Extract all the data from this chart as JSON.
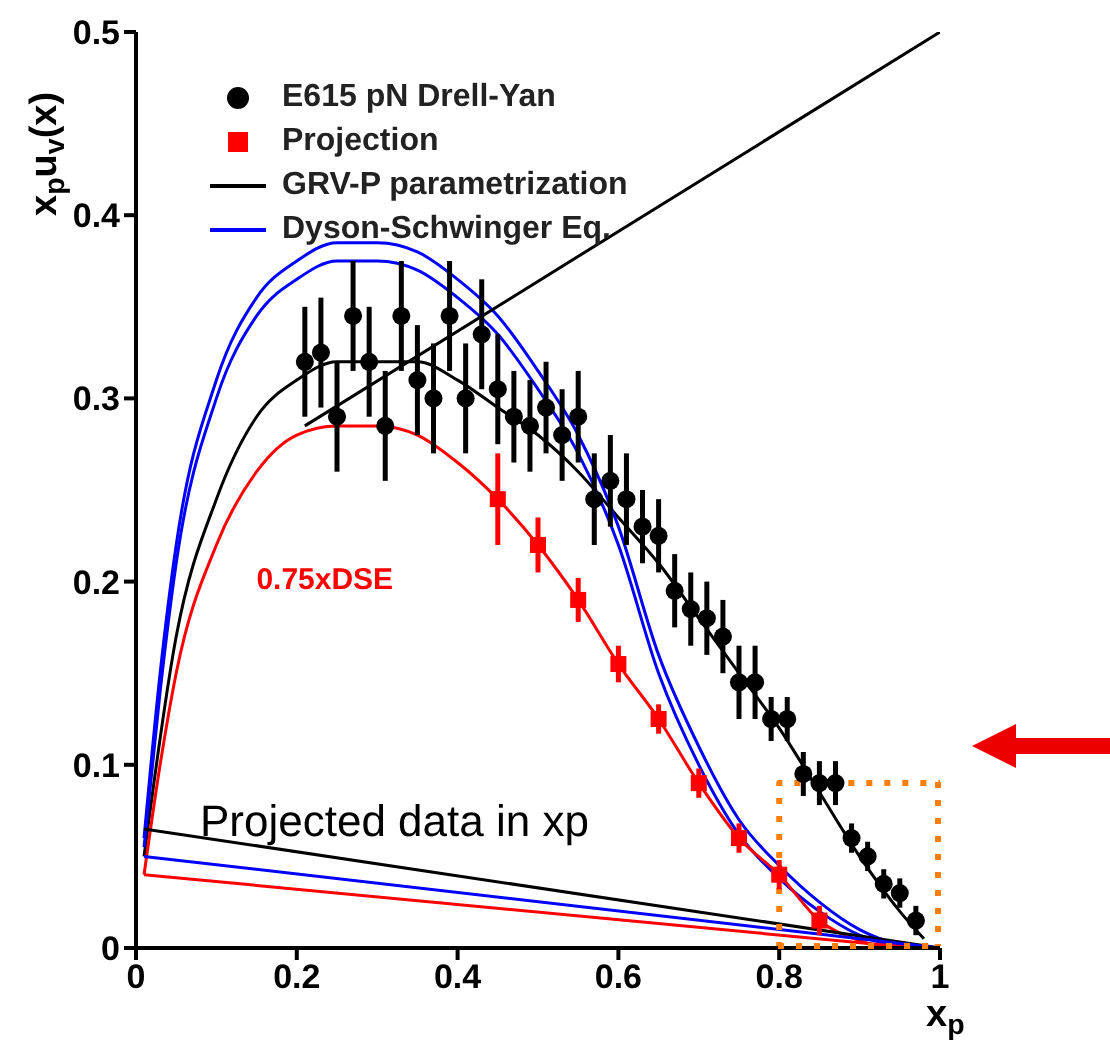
{
  "chart_data": {
    "type": "line",
    "xlabel": "x$_{p}$",
    "ylabel": "x$_{p}$u$_{v}$(x)",
    "xlim": [
      0,
      1
    ],
    "xticks": [
      0,
      0.2,
      0.4,
      0.6,
      0.8,
      1
    ],
    "ylim": [
      0,
      0.5
    ],
    "yticks": [
      0,
      0.1,
      0.2,
      0.3,
      0.4,
      0.5
    ],
    "grid": false,
    "legend": "top left",
    "annotations": [
      "Projected data in xp"
    ],
    "series": [
      {
        "name": "E615 pN Drell-Yan",
        "type": "scatter",
        "marker": "circle",
        "color": "#000000",
        "x": [
          0.21,
          0.23,
          0.25,
          0.27,
          0.29,
          0.31,
          0.33,
          0.35,
          0.37,
          0.39,
          0.41,
          0.43,
          0.45,
          0.47,
          0.49,
          0.51,
          0.53,
          0.55,
          0.57,
          0.59,
          0.61,
          0.63,
          0.65,
          0.67,
          0.69,
          0.71,
          0.73,
          0.75,
          0.77,
          0.79,
          0.81,
          0.83,
          0.85,
          0.87,
          0.89,
          0.91,
          0.93,
          0.95,
          0.97
        ],
        "values": [
          0.32,
          0.325,
          0.29,
          0.345,
          0.32,
          0.285,
          0.345,
          0.31,
          0.3,
          0.345,
          0.3,
          0.335,
          0.305,
          0.29,
          0.285,
          0.295,
          0.28,
          0.29,
          0.245,
          0.255,
          0.245,
          0.23,
          0.225,
          0.195,
          0.185,
          0.18,
          0.17,
          0.145,
          0.145,
          0.125,
          0.125,
          0.095,
          0.09,
          0.09,
          0.06,
          0.05,
          0.035,
          0.03,
          0.015
        ],
        "errors": [
          0.03,
          0.03,
          0.03,
          0.03,
          0.03,
          0.03,
          0.03,
          0.03,
          0.03,
          0.03,
          0.03,
          0.03,
          0.03,
          0.025,
          0.025,
          0.025,
          0.025,
          0.025,
          0.025,
          0.025,
          0.025,
          0.02,
          0.02,
          0.02,
          0.02,
          0.02,
          0.02,
          0.02,
          0.02,
          0.012,
          0.012,
          0.012,
          0.012,
          0.012,
          0.008,
          0.008,
          0.008,
          0.008,
          0.008
        ]
      },
      {
        "name": "Projection",
        "type": "scatter",
        "marker": "square",
        "color": "#ff0000",
        "x": [
          0.45,
          0.5,
          0.55,
          0.6,
          0.65,
          0.7,
          0.75,
          0.8,
          0.85
        ],
        "values": [
          0.245,
          0.22,
          0.19,
          0.155,
          0.125,
          0.09,
          0.06,
          0.04,
          0.015
        ],
        "errors": [
          0.025,
          0.015,
          0.012,
          0.01,
          0.008,
          0.008,
          0.008,
          0.008,
          0.008
        ]
      },
      {
        "name": "GRV-P parametrization",
        "color": "#000000",
        "x": [
          0.01,
          0.05,
          0.1,
          0.15,
          0.2,
          0.25,
          0.3,
          0.35,
          0.4,
          0.45,
          0.5,
          0.55,
          0.6,
          0.65,
          0.7,
          0.75,
          0.8,
          0.85,
          0.9,
          0.95,
          0.98
        ],
        "values": [
          0.05,
          0.17,
          0.245,
          0.29,
          0.31,
          0.32,
          0.32,
          0.32,
          0.31,
          0.295,
          0.28,
          0.26,
          0.235,
          0.21,
          0.18,
          0.15,
          0.12,
          0.085,
          0.05,
          0.02,
          0.005
        ]
      },
      {
        "name": "Dyson-Schwinger Eq.",
        "color": "#0000ff",
        "x": [
          0.01,
          0.03,
          0.05,
          0.1,
          0.15,
          0.2,
          0.25,
          0.3,
          0.35,
          0.4,
          0.45,
          0.5,
          0.55,
          0.6,
          0.65,
          0.7,
          0.75,
          0.8,
          0.85,
          0.9,
          0.95,
          1
        ],
        "values": [
          0.06,
          0.15,
          0.22,
          0.31,
          0.355,
          0.375,
          0.385,
          0.385,
          0.38,
          0.365,
          0.345,
          0.315,
          0.28,
          0.23,
          0.16,
          0.11,
          0.07,
          0.045,
          0.025,
          0.01,
          0.002,
          0
        ]
      },
      {
        "color": "#0000ff",
        "x": [
          0.01,
          0.03,
          0.05,
          0.1,
          0.15,
          0.2,
          0.25,
          0.3,
          0.35,
          0.4,
          0.45,
          0.5,
          0.55,
          0.6,
          0.65,
          0.7,
          0.75,
          0.8,
          0.85,
          0.9,
          0.95,
          1
        ],
        "values": [
          0.055,
          0.14,
          0.21,
          0.3,
          0.345,
          0.365,
          0.375,
          0.375,
          0.37,
          0.355,
          0.335,
          0.305,
          0.27,
          0.22,
          0.15,
          0.1,
          0.062,
          0.038,
          0.02,
          0.007,
          0.001,
          0
        ]
      },
      {
        "name": "0.75xDSE",
        "color": "#ff0000",
        "x": [
          0.01,
          0.03,
          0.05,
          0.1,
          0.15,
          0.2,
          0.25,
          0.3,
          0.35,
          0.4,
          0.45,
          0.5,
          0.55,
          0.6,
          0.65,
          0.7,
          0.75,
          0.8,
          0.85,
          0.9,
          0.93
        ],
        "values": [
          0.04,
          0.1,
          0.15,
          0.22,
          0.26,
          0.28,
          0.285,
          0.285,
          0.28,
          0.265,
          0.245,
          0.22,
          0.19,
          0.155,
          0.125,
          0.09,
          0.06,
          0.04,
          0.015,
          0.004,
          0
        ]
      },
      {
        "color": "#000000",
        "x": [
          0.21,
          1
        ],
        "values": [
          0.285,
          0.5
        ]
      },
      {
        "color": "#000000",
        "x": [
          0.01,
          1
        ],
        "values": [
          0.065,
          0
        ]
      },
      {
        "color": "#0000ff",
        "x": [
          0.01,
          1
        ],
        "values": [
          0.05,
          0
        ]
      },
      {
        "color": "#ff0000",
        "x": [
          0.01,
          0.97
        ],
        "values": [
          0.04,
          0
        ]
      },
      {
        "color": "#ff7f0e",
        "line_style": "dotted",
        "x": [
          0.8,
          0.8,
          1
        ],
        "values": [
          0,
          0.09,
          0.09
        ]
      }
    ]
  }
}
